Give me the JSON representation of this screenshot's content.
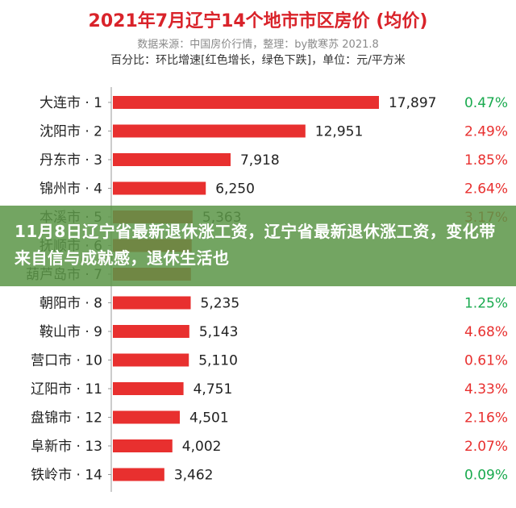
{
  "header": {
    "title": "2021年7月辽宁14个地市市区房价 (均价)",
    "source": "数据来源：中国房价行情，整理：by散寒苏  2021.8",
    "note": "百分比：环比增速[红色增长，绿色下跌]，单位：元/平方米"
  },
  "overlay": {
    "text": "11月8日辽宁省最新退休涨工资，辽宁省最新退休涨工资，变化带来自信与成就感，退休生活也"
  },
  "colors": {
    "bar": "#e8302f",
    "increase": "#e8302f",
    "decrease": "#1aaa4f"
  },
  "chart_data": {
    "type": "bar",
    "orientation": "horizontal",
    "title": "2021年7月辽宁14个地市市区房价 (均价)",
    "categories": [
      "大连市 · 1",
      "沈阳市 · 2",
      "丹东市 · 3",
      "锦州市 · 4",
      "本溪市 · 5",
      "抚顺市 · 6",
      "葫芦岛市 · 7",
      "朝阳市 · 8",
      "鞍山市 · 9",
      "营口市 · 10",
      "辽阳市 · 11",
      "盘锦市 · 12",
      "阜新市 · 13",
      "铁岭市 · 14"
    ],
    "values": [
      17897,
      12951,
      7918,
      6250,
      5363,
      5300,
      5250,
      5235,
      5143,
      5110,
      4751,
      4501,
      4002,
      3462
    ],
    "value_labels": [
      "17,897",
      "12,951",
      "7,918",
      "6,250",
      "5,363",
      "",
      "",
      "5,235",
      "5,143",
      "5,110",
      "4,751",
      "4,501",
      "4,002",
      "3,462"
    ],
    "changes": [
      "0.47%",
      "2.49%",
      "1.85%",
      "2.64%",
      "3.17%",
      "",
      "",
      "1.25%",
      "4.68%",
      "0.61%",
      "4.33%",
      "2.16%",
      "2.07%",
      "0.09%"
    ],
    "change_direction": [
      "down",
      "up",
      "up",
      "up",
      "up",
      "",
      "",
      "down",
      "up",
      "up",
      "up",
      "up",
      "up",
      "down"
    ],
    "xlim": [
      0,
      18000
    ],
    "grid": false,
    "legend": "none"
  }
}
